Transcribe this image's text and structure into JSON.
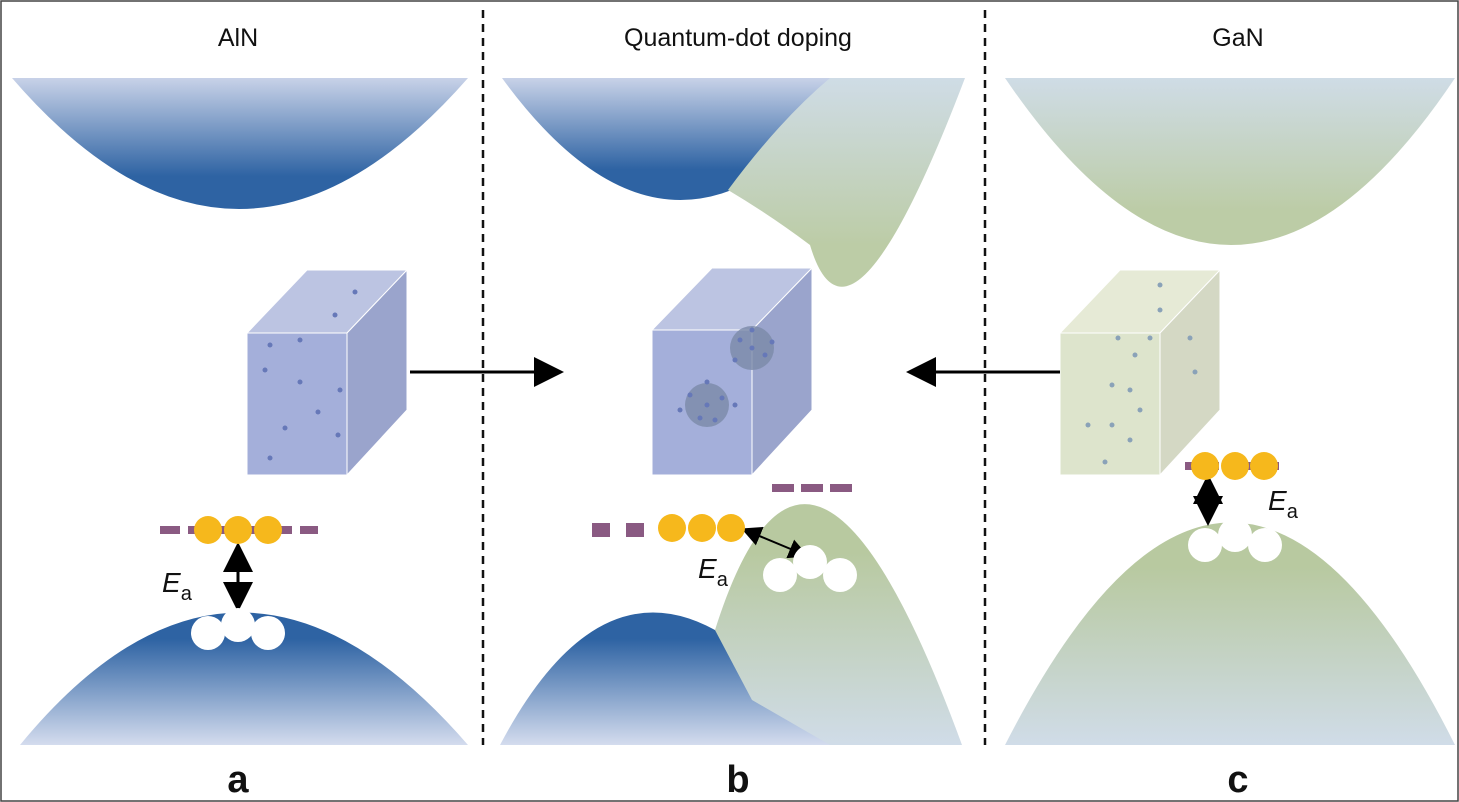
{
  "panels": [
    {
      "title": "AlN",
      "label": "a",
      "energy_label": {
        "main": "E",
        "sub": "a"
      }
    },
    {
      "title": "Quantum-dot doping",
      "label": "b",
      "energy_label": {
        "main": "E",
        "sub": "a"
      }
    },
    {
      "title": "GaN",
      "label": "c",
      "energy_label": {
        "main": "E",
        "sub": "a"
      }
    }
  ]
}
